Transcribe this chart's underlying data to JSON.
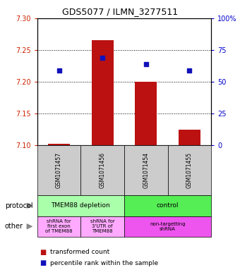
{
  "title": "GDS5077 / ILMN_3277511",
  "samples": [
    "GSM1071457",
    "GSM1071456",
    "GSM1071454",
    "GSM1071455"
  ],
  "bar_values": [
    7.103,
    7.265,
    7.2,
    7.125
  ],
  "bar_base": 7.1,
  "blue_dot_values": [
    7.218,
    7.238,
    7.228,
    7.218
  ],
  "ylim": [
    7.1,
    7.3
  ],
  "yticks": [
    7.1,
    7.15,
    7.2,
    7.25,
    7.3
  ],
  "right_ytick_values": [
    0,
    25,
    50,
    75,
    100
  ],
  "right_ytick_labels": [
    "0",
    "25",
    "50",
    "75",
    "100%"
  ],
  "bar_color": "#bb1111",
  "dot_color": "#1111bb",
  "grid_color": "#000000",
  "left_tick_color": "#cc2200",
  "right_tick_color": "#0000cc",
  "sample_bg_color": "#cccccc",
  "protocol_colors": [
    "#aaffaa",
    "#55ee55"
  ],
  "protocol_labels": [
    "TMEM88 depletion",
    "control"
  ],
  "other_col1_color": "#ffaaff",
  "other_col2_color": "#ffaaff",
  "other_col3_color": "#ee55ee",
  "other_labels": [
    "shRNA for\nfirst exon\nof TMEM88",
    "shRNA for\n3'UTR of\nTMEM88",
    "non-targetting\nshRNA"
  ],
  "legend_red_label": "transformed count",
  "legend_blue_label": "percentile rank within the sample",
  "bar_width": 0.5
}
